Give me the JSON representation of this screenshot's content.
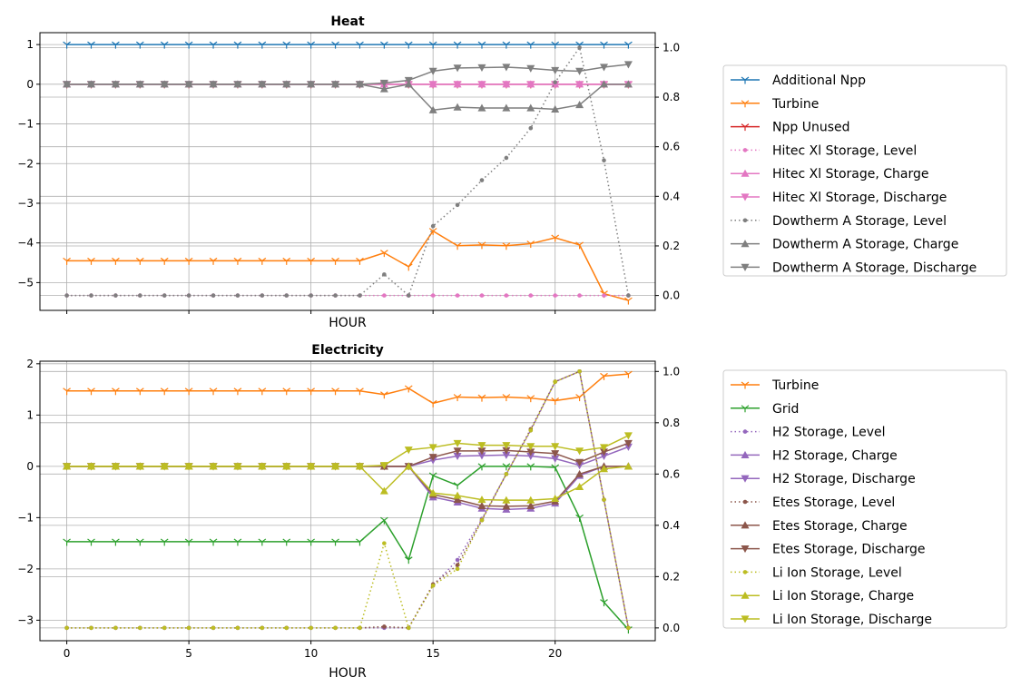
{
  "chart_data": [
    {
      "type": "line",
      "title": "Heat",
      "xlabel": "HOUR",
      "show_x_ticklabels": false,
      "xlim": [
        -1.1,
        24.1
      ],
      "xticks": [
        0,
        5,
        10,
        15,
        20
      ],
      "ylim": [
        -5.7,
        1.3
      ],
      "yticks": [
        1,
        0,
        -1,
        -2,
        -3,
        -4,
        -5
      ],
      "y2lim": [
        -0.06,
        1.06
      ],
      "y2ticks": [
        0.0,
        0.2,
        0.4,
        0.6,
        0.8,
        1.0
      ],
      "grid": true,
      "legend_position": "right",
      "x": [
        0,
        1,
        2,
        3,
        4,
        5,
        6,
        7,
        8,
        9,
        10,
        11,
        12,
        13,
        14,
        15,
        16,
        17,
        18,
        19,
        20,
        21,
        22,
        23
      ],
      "series": [
        {
          "name": "Additional Npp",
          "axis": "left",
          "color": "#1f77b4",
          "style": "solid",
          "marker": "tri_down",
          "values": [
            1,
            1,
            1,
            1,
            1,
            1,
            1,
            1,
            1,
            1,
            1,
            1,
            1,
            1,
            1,
            1,
            1,
            1,
            1,
            1,
            1,
            1,
            1,
            1
          ]
        },
        {
          "name": "Turbine",
          "axis": "left",
          "color": "#ff7f0e",
          "style": "solid",
          "marker": "tri_down",
          "values": [
            -4.45,
            -4.45,
            -4.45,
            -4.45,
            -4.45,
            -4.45,
            -4.45,
            -4.45,
            -4.45,
            -4.45,
            -4.45,
            -4.45,
            -4.45,
            -4.25,
            -4.6,
            -3.7,
            -4.07,
            -4.05,
            -4.07,
            -4.02,
            -3.87,
            -4.05,
            -5.28,
            -5.45
          ]
        },
        {
          "name": "Npp Unused",
          "axis": "left",
          "color": "#d62728",
          "style": "solid",
          "marker": "tri_down",
          "values": [
            0,
            0,
            0,
            0,
            0,
            0,
            0,
            0,
            0,
            0,
            0,
            0,
            0,
            0,
            0,
            0,
            0,
            0,
            0,
            0,
            0,
            0,
            0,
            0
          ]
        },
        {
          "name": "Hitec Xl Storage, Level",
          "axis": "right",
          "color": "#e377c2",
          "style": "dotted",
          "marker": "dot",
          "values": [
            0,
            0,
            0,
            0,
            0,
            0,
            0,
            0,
            0,
            0,
            0,
            0,
            0,
            0,
            0,
            0,
            0,
            0,
            0,
            0,
            0,
            0,
            0,
            0
          ]
        },
        {
          "name": "Hitec Xl Storage, Charge",
          "axis": "left",
          "color": "#e377c2",
          "style": "solid",
          "marker": "triangle_up",
          "values": [
            0,
            0,
            0,
            0,
            0,
            0,
            0,
            0,
            0,
            0,
            0,
            0,
            0,
            0,
            0,
            0,
            0,
            0,
            0,
            0,
            0,
            0,
            0,
            0
          ]
        },
        {
          "name": "Hitec Xl Storage, Discharge",
          "axis": "left",
          "color": "#e377c2",
          "style": "solid",
          "marker": "triangle_down",
          "values": [
            0,
            0,
            0,
            0,
            0,
            0,
            0,
            0,
            0,
            0,
            0,
            0,
            0,
            0,
            0,
            0,
            0,
            0,
            0,
            0,
            0,
            0,
            0,
            0
          ]
        },
        {
          "name": "Dowtherm A Storage, Level",
          "axis": "right",
          "color": "#7f7f7f",
          "style": "dotted",
          "marker": "dot",
          "values": [
            0,
            0,
            0,
            0,
            0,
            0,
            0,
            0,
            0,
            0,
            0,
            0,
            0,
            0.085,
            0,
            0.28,
            0.365,
            0.465,
            0.555,
            0.675,
            0.86,
            1.0,
            0.545,
            0
          ]
        },
        {
          "name": "Dowtherm A Storage, Charge",
          "axis": "left",
          "color": "#7f7f7f",
          "style": "solid",
          "marker": "triangle_up",
          "values": [
            0,
            0,
            0,
            0,
            0,
            0,
            0,
            0,
            0,
            0,
            0,
            0,
            0,
            -0.12,
            0,
            -0.65,
            -0.58,
            -0.6,
            -0.6,
            -0.6,
            -0.63,
            -0.52,
            0,
            0
          ]
        },
        {
          "name": "Dowtherm A Storage, Discharge",
          "axis": "left",
          "color": "#7f7f7f",
          "style": "solid",
          "marker": "triangle_down",
          "values": [
            0,
            0,
            0,
            0,
            0,
            0,
            0,
            0,
            0,
            0,
            0,
            0,
            0,
            0.03,
            0.1,
            0.33,
            0.41,
            0.42,
            0.43,
            0.4,
            0.35,
            0.33,
            0.43,
            0.5
          ]
        }
      ]
    },
    {
      "type": "line",
      "title": "Electricity",
      "xlabel": "HOUR",
      "show_x_ticklabels": true,
      "xlim": [
        -1.1,
        24.1
      ],
      "xticks": [
        0,
        5,
        10,
        15,
        20
      ],
      "ylim": [
        -3.4,
        2.05
      ],
      "yticks": [
        2,
        1,
        0,
        -1,
        -2,
        -3
      ],
      "y2lim": [
        -0.05,
        1.04
      ],
      "y2ticks": [
        0.0,
        0.2,
        0.4,
        0.6,
        0.8,
        1.0
      ],
      "grid": true,
      "legend_position": "right",
      "x": [
        0,
        1,
        2,
        3,
        4,
        5,
        6,
        7,
        8,
        9,
        10,
        11,
        12,
        13,
        14,
        15,
        16,
        17,
        18,
        19,
        20,
        21,
        22,
        23
      ],
      "series": [
        {
          "name": "Turbine",
          "axis": "left",
          "color": "#ff7f0e",
          "style": "solid",
          "marker": "tri_down",
          "values": [
            1.47,
            1.47,
            1.47,
            1.47,
            1.47,
            1.47,
            1.47,
            1.47,
            1.47,
            1.47,
            1.47,
            1.47,
            1.47,
            1.4,
            1.52,
            1.23,
            1.35,
            1.34,
            1.35,
            1.33,
            1.28,
            1.35,
            1.76,
            1.8
          ]
        },
        {
          "name": "Grid",
          "axis": "left",
          "color": "#2ca02c",
          "style": "solid",
          "marker": "tri_down",
          "values": [
            -1.47,
            -1.47,
            -1.47,
            -1.47,
            -1.47,
            -1.47,
            -1.47,
            -1.47,
            -1.47,
            -1.47,
            -1.47,
            -1.47,
            -1.47,
            -1.05,
            -1.82,
            -0.18,
            -0.37,
            0,
            0,
            0,
            -0.02,
            -1.0,
            -2.65,
            -3.18
          ]
        },
        {
          "name": "H2 Storage, Level",
          "axis": "right",
          "color": "#9467bd",
          "style": "dotted",
          "marker": "dot",
          "values": [
            0,
            0,
            0,
            0,
            0,
            0,
            0,
            0,
            0,
            0,
            0,
            0,
            0,
            0,
            0,
            0.165,
            0.265,
            0.425,
            0.6,
            0.77,
            0.96,
            1.0,
            0.5,
            0
          ]
        },
        {
          "name": "H2 Storage, Charge",
          "axis": "left",
          "color": "#9467bd",
          "style": "solid",
          "marker": "triangle_up",
          "values": [
            0,
            0,
            0,
            0,
            0,
            0,
            0,
            0,
            0,
            0,
            0,
            0,
            0,
            0,
            0,
            -0.6,
            -0.7,
            -0.82,
            -0.84,
            -0.82,
            -0.72,
            -0.18,
            0,
            0
          ]
        },
        {
          "name": "H2 Storage, Discharge",
          "axis": "left",
          "color": "#9467bd",
          "style": "solid",
          "marker": "triangle_down",
          "values": [
            0,
            0,
            0,
            0,
            0,
            0,
            0,
            0,
            0,
            0,
            0,
            0,
            0,
            0,
            0,
            0.12,
            0.2,
            0.21,
            0.22,
            0.2,
            0.15,
            0.02,
            0.2,
            0.38
          ]
        },
        {
          "name": "Etes Storage, Level",
          "axis": "right",
          "color": "#8c564b",
          "style": "dotted",
          "marker": "dot",
          "values": [
            0,
            0,
            0,
            0,
            0,
            0,
            0,
            0,
            0,
            0,
            0,
            0,
            0,
            0.005,
            0,
            0.17,
            0.245,
            0.42,
            0.6,
            0.775,
            0.96,
            1.0,
            0.5,
            0
          ]
        },
        {
          "name": "Etes Storage, Charge",
          "axis": "left",
          "color": "#8c564b",
          "style": "solid",
          "marker": "triangle_up",
          "values": [
            0,
            0,
            0,
            0,
            0,
            0,
            0,
            0,
            0,
            0,
            0,
            0,
            0,
            0,
            0,
            -0.55,
            -0.65,
            -0.77,
            -0.78,
            -0.77,
            -0.68,
            -0.15,
            0,
            0
          ]
        },
        {
          "name": "Etes Storage, Discharge",
          "axis": "left",
          "color": "#8c564b",
          "style": "solid",
          "marker": "triangle_down",
          "values": [
            0,
            0,
            0,
            0,
            0,
            0,
            0,
            0,
            0,
            0,
            0,
            0,
            0,
            0,
            0,
            0.18,
            0.3,
            0.3,
            0.31,
            0.28,
            0.25,
            0.08,
            0.28,
            0.45
          ]
        },
        {
          "name": "Li Ion Storage, Level",
          "axis": "right",
          "color": "#bcbd22",
          "style": "dotted",
          "marker": "dot",
          "values": [
            0,
            0,
            0,
            0,
            0,
            0,
            0,
            0,
            0,
            0,
            0,
            0,
            0,
            0.33,
            0,
            0.165,
            0.23,
            0.42,
            0.6,
            0.77,
            0.96,
            1.0,
            0.5,
            0
          ]
        },
        {
          "name": "Li Ion Storage, Charge",
          "axis": "left",
          "color": "#bcbd22",
          "style": "solid",
          "marker": "triangle_up",
          "values": [
            0,
            0,
            0,
            0,
            0,
            0,
            0,
            0,
            0,
            0,
            0,
            0,
            0,
            -0.48,
            0,
            -0.52,
            -0.57,
            -0.65,
            -0.66,
            -0.66,
            -0.63,
            -0.4,
            -0.05,
            0
          ]
        },
        {
          "name": "Li Ion Storage, Discharge",
          "axis": "left",
          "color": "#bcbd22",
          "style": "solid",
          "marker": "triangle_down",
          "values": [
            0,
            0,
            0,
            0,
            0,
            0,
            0,
            0,
            0,
            0,
            0,
            0,
            0,
            0.02,
            0.32,
            0.37,
            0.45,
            0.41,
            0.41,
            0.39,
            0.39,
            0.3,
            0.37,
            0.6
          ]
        }
      ]
    }
  ]
}
